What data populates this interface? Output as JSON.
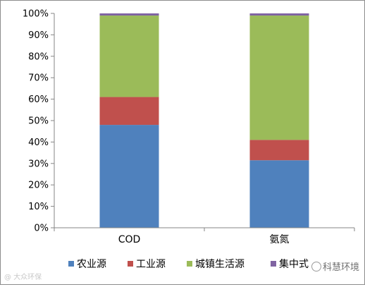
{
  "chart_data": {
    "type": "bar",
    "stacked": true,
    "percent": true,
    "categories": [
      "COD",
      "氨氮"
    ],
    "series": [
      {
        "name": "农业源",
        "color": "#4f81bd",
        "values": [
          48,
          31.5
        ]
      },
      {
        "name": "工业源",
        "color": "#c0504d",
        "values": [
          13,
          9.5
        ]
      },
      {
        "name": "城镇生活源",
        "color": "#9bbb59",
        "values": [
          38,
          58
        ]
      },
      {
        "name": "集中式",
        "color": "#8064a2",
        "values": [
          1,
          1
        ]
      }
    ],
    "ylim": [
      0,
      100
    ],
    "yticks": [
      "0%",
      "10%",
      "20%",
      "30%",
      "40%",
      "50%",
      "60%",
      "70%",
      "80%",
      "90%",
      "100%"
    ],
    "grid": false,
    "legend": "bottom"
  },
  "watermarks": {
    "left": "@ 大众环保",
    "right": "科慧环境"
  }
}
